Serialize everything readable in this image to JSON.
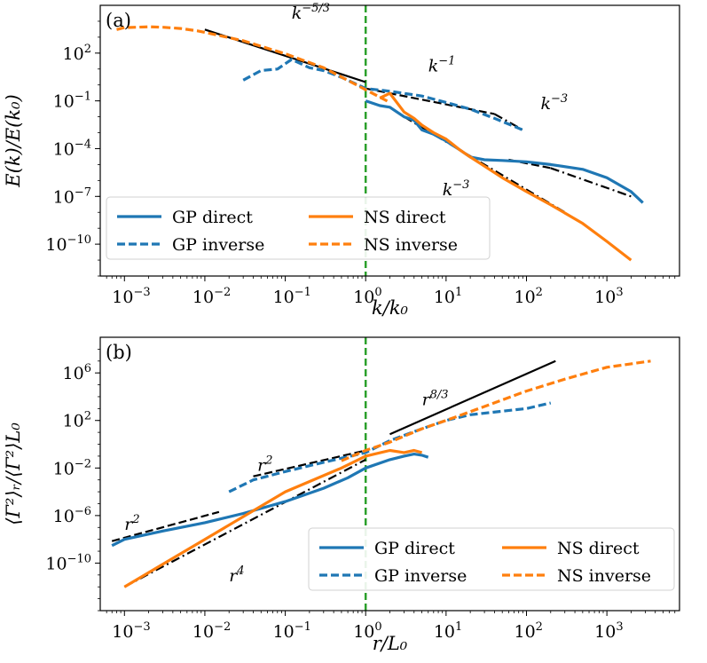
{
  "chart_data": [
    {
      "type": "line",
      "panel_label": "(a)",
      "xlabel": "k/k₀",
      "ylabel": "E(k)/E(k₀)",
      "xscale": "log",
      "yscale": "log",
      "xlim": [
        0.0005,
        8000
      ],
      "ylim": [
        1e-12,
        100000.0
      ],
      "xticks": [
        {
          "base": "10",
          "exp": "−3",
          "v": 0.001
        },
        {
          "base": "10",
          "exp": "−2",
          "v": 0.01
        },
        {
          "base": "10",
          "exp": "−1",
          "v": 0.1
        },
        {
          "base": "10",
          "exp": "0",
          "v": 1
        },
        {
          "base": "10",
          "exp": "1",
          "v": 10
        },
        {
          "base": "10",
          "exp": "2",
          "v": 100
        },
        {
          "base": "10",
          "exp": "3",
          "v": 1000
        }
      ],
      "yticks": [
        {
          "base": "10",
          "exp": "−10",
          "v": 1e-10
        },
        {
          "base": "10",
          "exp": "−7",
          "v": 1e-07
        },
        {
          "base": "10",
          "exp": "−4",
          "v": 0.0001
        },
        {
          "base": "10",
          "exp": "−1",
          "v": 0.1
        },
        {
          "base": "10",
          "exp": "2",
          "v": 100
        }
      ],
      "vline_x": 1,
      "series": [
        {
          "name": "GP direct",
          "style": "solid",
          "color": "#1f77b4",
          "x": [
            1,
            1.5,
            2,
            3,
            4,
            5,
            7,
            10,
            15,
            20,
            30,
            50,
            100,
            200,
            500,
            1000,
            2000,
            2800
          ],
          "y": [
            0.1,
            0.05,
            0.04,
            0.01,
            0.006,
            0.0015,
            0.0008,
            0.0003,
            8e-05,
            3e-05,
            2e-05,
            1.8e-05,
            1.5e-05,
            1e-05,
            5e-06,
            1.5e-06,
            2e-07,
            4e-08
          ]
        },
        {
          "name": "GP inverse",
          "style": "dashed",
          "color": "#1f77b4",
          "x": [
            0.03,
            0.05,
            0.08,
            0.12,
            0.2,
            0.3,
            0.5,
            1,
            2,
            5,
            10,
            20,
            40,
            90
          ],
          "y": [
            2,
            8,
            10,
            40,
            12,
            8,
            3,
            0.6,
            0.4,
            0.2,
            0.08,
            0.03,
            0.008,
            0.0015
          ]
        },
        {
          "name": "NS direct",
          "style": "solid",
          "color": "#ff7f0e",
          "x": [
            1.5,
            2,
            3,
            4,
            5,
            7,
            10,
            15,
            20,
            30,
            50,
            100,
            200,
            500,
            1000,
            2000
          ],
          "y": [
            0.15,
            0.3,
            0.02,
            0.008,
            0.003,
            0.001,
            0.0004,
            8e-05,
            3e-05,
            8e-06,
            1.5e-06,
            2e-07,
            3e-08,
            2e-09,
            1.5e-10,
            1e-11
          ]
        },
        {
          "name": "NS inverse",
          "style": "dashed",
          "color": "#ff7f0e",
          "x": [
            0.0008,
            0.001,
            0.002,
            0.003,
            0.005,
            0.008,
            0.01,
            0.03,
            0.1,
            0.3,
            1,
            2
          ],
          "y": [
            3000,
            4000,
            4500,
            4200,
            3500,
            2500,
            2000,
            600,
            90,
            12,
            0.5,
            0.08
          ]
        }
      ],
      "reference_lines": [
        {
          "style": "solid",
          "color": "#000000",
          "x": [
            0.01,
            1
          ],
          "y": [
            3000,
            1.5
          ]
        },
        {
          "style": "dashed",
          "color": "#000000",
          "x": [
            1,
            40
          ],
          "y": [
            0.6,
            0.015
          ]
        },
        {
          "style": "dashdot",
          "color": "#000000",
          "x": [
            40,
            90
          ],
          "y": [
            0.015,
            0.0015
          ]
        },
        {
          "style": "dashdot",
          "color": "#000000",
          "x": [
            3,
            300
          ],
          "y": [
            0.01,
            1e-08
          ]
        },
        {
          "style": "dashed",
          "color": "#000000",
          "x": [
            60,
            200
          ],
          "y": [
            2e-05,
            6e-06
          ]
        },
        {
          "style": "dashdot",
          "color": "#000000",
          "x": [
            200,
            2000
          ],
          "y": [
            6e-06,
            1e-07
          ]
        }
      ],
      "annotations": [
        {
          "base": "k",
          "exp": "−5/3",
          "x": 0.12,
          "y": 15000
        },
        {
          "base": "k",
          "exp": "−1",
          "x": 6,
          "y": 7
        },
        {
          "base": "k",
          "exp": "−3",
          "x": 150,
          "y": 0.03
        },
        {
          "base": "k",
          "exp": "−3",
          "x": 9,
          "y": 1.2e-07
        }
      ],
      "legend": {
        "placement": "lower-left",
        "entries": [
          "GP direct",
          "NS direct",
          "GP inverse",
          "NS inverse"
        ]
      }
    },
    {
      "type": "line",
      "panel_label": "(b)",
      "xlabel": "r/L₀",
      "ylabel": "⟨Γ²⟩ᵣ/⟨Γ²⟩L₀",
      "xscale": "log",
      "yscale": "log",
      "xlim": [
        0.0005,
        8000
      ],
      "ylim": [
        1e-14,
        1000000000.0
      ],
      "xticks": [
        {
          "base": "10",
          "exp": "−3",
          "v": 0.001
        },
        {
          "base": "10",
          "exp": "−2",
          "v": 0.01
        },
        {
          "base": "10",
          "exp": "−1",
          "v": 0.1
        },
        {
          "base": "10",
          "exp": "0",
          "v": 1
        },
        {
          "base": "10",
          "exp": "1",
          "v": 10
        },
        {
          "base": "10",
          "exp": "2",
          "v": 100
        },
        {
          "base": "10",
          "exp": "3",
          "v": 1000
        }
      ],
      "yticks": [
        {
          "base": "10",
          "exp": "−10",
          "v": 1e-10
        },
        {
          "base": "10",
          "exp": "−6",
          "v": 1e-06
        },
        {
          "base": "10",
          "exp": "−2",
          "v": 0.01
        },
        {
          "base": "10",
          "exp": "2",
          "v": 100
        },
        {
          "base": "10",
          "exp": "6",
          "v": 1000000.0
        }
      ],
      "vline_x": 1,
      "series": [
        {
          "name": "GP direct",
          "style": "solid",
          "color": "#1f77b4",
          "x": [
            0.0007,
            0.001,
            0.003,
            0.01,
            0.03,
            0.1,
            0.3,
            0.6,
            1,
            2,
            3,
            4,
            5,
            6
          ],
          "y": [
            3e-09,
            1e-08,
            5e-08,
            2.5e-07,
            1.5e-06,
            1.5e-05,
            0.0002,
            0.0015,
            0.01,
            0.05,
            0.1,
            0.15,
            0.12,
            0.08
          ]
        },
        {
          "name": "GP inverse",
          "style": "dashed",
          "color": "#1f77b4",
          "x": [
            0.02,
            0.04,
            0.1,
            0.3,
            1,
            2,
            5,
            10,
            20,
            50,
            100,
            200
          ],
          "y": [
            0.0001,
            0.001,
            0.005,
            0.03,
            0.2,
            2,
            20,
            100,
            300,
            600,
            1000,
            3000
          ]
        },
        {
          "name": "NS direct",
          "style": "solid",
          "color": "#ff7f0e",
          "x": [
            0.001,
            0.01,
            0.1,
            0.5,
            1,
            2,
            3,
            4,
            5
          ],
          "y": [
            1e-12,
            1e-08,
            0.0001,
            0.01,
            0.1,
            0.3,
            0.2,
            0.3,
            0.2
          ]
        },
        {
          "name": "NS inverse",
          "style": "dashed",
          "color": "#ff7f0e",
          "x": [
            0.5,
            1,
            2,
            5,
            10,
            30,
            100,
            300,
            1000,
            3500
          ],
          "y": [
            0.04,
            0.3,
            1.5,
            20,
            100,
            1500,
            30000,
            300000.0,
            3000000.0,
            10000000.0
          ]
        }
      ],
      "reference_lines": [
        {
          "style": "dashed",
          "color": "#000000",
          "x": [
            0.0007,
            0.015
          ],
          "y": [
            7e-09,
            2e-06
          ]
        },
        {
          "style": "dashed",
          "color": "#000000",
          "x": [
            0.04,
            1
          ],
          "y": [
            0.002,
            0.3
          ]
        },
        {
          "style": "dashdot",
          "color": "#000000",
          "x": [
            0.001,
            1
          ],
          "y": [
            1e-12,
            0.05
          ]
        },
        {
          "style": "solid",
          "color": "#000000",
          "x": [
            2,
            230
          ],
          "y": [
            7,
            10000000.0
          ]
        }
      ],
      "annotations": [
        {
          "base": "r",
          "exp": "2",
          "x": 0.001,
          "y": 6e-08
        },
        {
          "base": "r",
          "exp": "2",
          "x": 0.045,
          "y": 0.006
        },
        {
          "base": "r",
          "exp": "4",
          "x": 0.02,
          "y": 3e-12
        },
        {
          "base": "r",
          "exp": "8/3",
          "x": 5,
          "y": 2000
        }
      ],
      "legend": {
        "placement": "lower-right",
        "entries": [
          "GP direct",
          "NS direct",
          "GP inverse",
          "NS inverse"
        ]
      }
    }
  ]
}
